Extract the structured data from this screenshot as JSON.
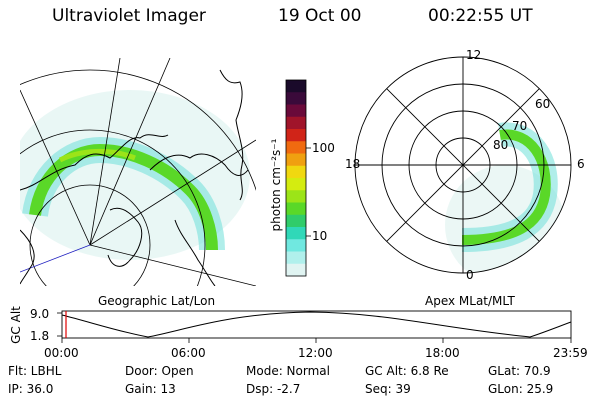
{
  "header": {
    "instrument": "Ultraviolet Imager",
    "date": "19 Oct 00",
    "time": "00:22:55 UT"
  },
  "colorbar": {
    "unit_label": "photon cm⁻²s⁻¹",
    "ticks": [
      "100",
      "10"
    ],
    "colors": [
      "#1a0a2a",
      "#3a0a3a",
      "#6a0a3a",
      "#a0142a",
      "#d02418",
      "#f06a10",
      "#f0a010",
      "#f0d810",
      "#d4ec10",
      "#9ce418",
      "#5ad828",
      "#30cc6a",
      "#30d8b8",
      "#70e8e0",
      "#b0f0ec",
      "#e0f4f2"
    ]
  },
  "left_map": {
    "caption": "Geographic Lat/Lon"
  },
  "right_map": {
    "caption": "Apex MLat/MLT",
    "mlt_labels": {
      "top": "12",
      "left": "18",
      "right": "6",
      "bottom": "0"
    },
    "lat_labels": [
      "80",
      "70",
      "60"
    ]
  },
  "altitude_plot": {
    "ylabel": "GC Alt",
    "ytick_top": "9.0",
    "ytick_bottom": "1.8",
    "xticks": [
      "00:00",
      "06:00",
      "12:00",
      "18:00",
      "23:59"
    ],
    "cursor_color": "#e00000"
  },
  "status": {
    "flt": "Flt: LBHL",
    "ip": "IP: 36.0",
    "door": "Door: Open",
    "gain": "Gain: 13",
    "mode": "Mode: Normal",
    "dsp": "Dsp:   -2.7",
    "gc_alt": "GC Alt: 6.8 Re",
    "seq": "Seq: 39",
    "glat": "GLat:  70.9",
    "glon": "GLon:  25.9"
  }
}
